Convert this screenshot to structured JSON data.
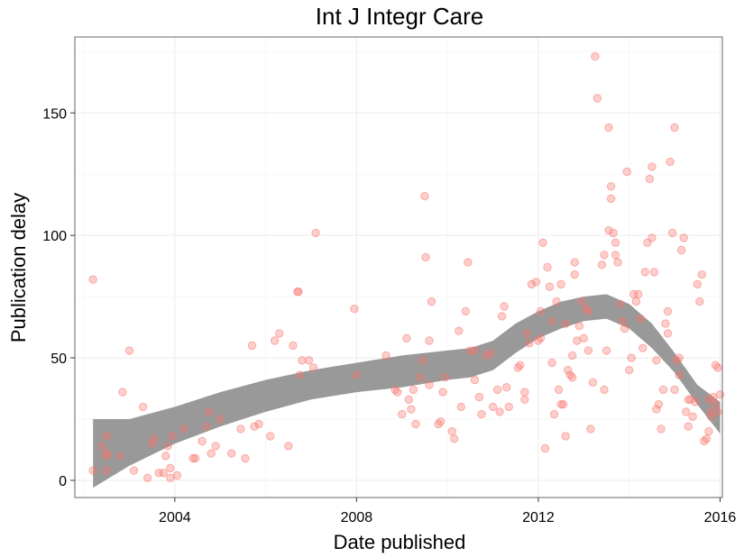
{
  "chart_data": {
    "type": "scatter",
    "title": "Int J Integr Care",
    "xlabel": "Date published",
    "ylabel": "Publication delay",
    "xlim": [
      2001.8,
      2016.05
    ],
    "ylim": [
      -7,
      181
    ],
    "x_ticks": [
      2004,
      2008,
      2012,
      2016
    ],
    "y_ticks": [
      0,
      50,
      100,
      150
    ],
    "grid": true,
    "legend": "none",
    "point_color": "#f8766d",
    "ribbon_color": "#999999",
    "points": [
      [
        2002.2,
        82
      ],
      [
        2002.2,
        4
      ],
      [
        2002.4,
        14
      ],
      [
        2002.5,
        18
      ],
      [
        2002.5,
        11
      ],
      [
        2002.5,
        10
      ],
      [
        2002.5,
        4
      ],
      [
        2002.8,
        10
      ],
      [
        2002.85,
        36
      ],
      [
        2003.0,
        53
      ],
      [
        2003.1,
        4
      ],
      [
        2003.3,
        30
      ],
      [
        2003.4,
        1
      ],
      [
        2003.5,
        15
      ],
      [
        2003.55,
        17
      ],
      [
        2003.65,
        3
      ],
      [
        2003.75,
        3
      ],
      [
        2003.8,
        10
      ],
      [
        2003.85,
        14
      ],
      [
        2003.9,
        5
      ],
      [
        2003.9,
        1
      ],
      [
        2003.95,
        18
      ],
      [
        2004.05,
        2
      ],
      [
        2004.2,
        21
      ],
      [
        2004.4,
        9
      ],
      [
        2004.45,
        9
      ],
      [
        2004.6,
        16
      ],
      [
        2004.7,
        22
      ],
      [
        2004.75,
        28
      ],
      [
        2004.8,
        11
      ],
      [
        2004.9,
        14
      ],
      [
        2005.0,
        25
      ],
      [
        2005.25,
        11
      ],
      [
        2005.45,
        21
      ],
      [
        2005.55,
        9
      ],
      [
        2005.7,
        55
      ],
      [
        2005.75,
        22
      ],
      [
        2005.85,
        23
      ],
      [
        2006.1,
        18
      ],
      [
        2006.2,
        57
      ],
      [
        2006.3,
        60
      ],
      [
        2006.5,
        14
      ],
      [
        2006.6,
        55
      ],
      [
        2006.7,
        77
      ],
      [
        2006.72,
        77
      ],
      [
        2006.75,
        43
      ],
      [
        2006.8,
        49
      ],
      [
        2006.95,
        49
      ],
      [
        2007.05,
        46
      ],
      [
        2007.1,
        101
      ],
      [
        2007.95,
        70
      ],
      [
        2008.0,
        43
      ],
      [
        2008.65,
        51
      ],
      [
        2008.85,
        37
      ],
      [
        2008.9,
        36
      ],
      [
        2009.0,
        27
      ],
      [
        2009.1,
        58
      ],
      [
        2009.15,
        33
      ],
      [
        2009.2,
        29
      ],
      [
        2009.25,
        37
      ],
      [
        2009.3,
        23
      ],
      [
        2009.4,
        42
      ],
      [
        2009.45,
        49
      ],
      [
        2009.5,
        116
      ],
      [
        2009.52,
        91
      ],
      [
        2009.6,
        57
      ],
      [
        2009.65,
        73
      ],
      [
        2009.6,
        39
      ],
      [
        2009.8,
        23
      ],
      [
        2009.85,
        24
      ],
      [
        2009.9,
        36
      ],
      [
        2009.95,
        42
      ],
      [
        2010.1,
        20
      ],
      [
        2010.15,
        17
      ],
      [
        2010.25,
        61
      ],
      [
        2010.3,
        30
      ],
      [
        2010.4,
        69
      ],
      [
        2010.45,
        89
      ],
      [
        2010.5,
        53
      ],
      [
        2010.6,
        53
      ],
      [
        2010.6,
        41
      ],
      [
        2010.7,
        34
      ],
      [
        2010.75,
        27
      ],
      [
        2010.85,
        51
      ],
      [
        2010.95,
        52
      ],
      [
        2011.0,
        30
      ],
      [
        2011.1,
        37
      ],
      [
        2011.15,
        28
      ],
      [
        2011.2,
        67
      ],
      [
        2011.25,
        71
      ],
      [
        2011.3,
        38
      ],
      [
        2011.35,
        30
      ],
      [
        2011.55,
        46
      ],
      [
        2011.6,
        47
      ],
      [
        2011.7,
        36
      ],
      [
        2011.7,
        33
      ],
      [
        2011.75,
        60
      ],
      [
        2011.8,
        56
      ],
      [
        2011.85,
        80
      ],
      [
        2011.95,
        81
      ],
      [
        2012.0,
        57
      ],
      [
        2012.05,
        69
      ],
      [
        2012.05,
        58
      ],
      [
        2012.1,
        97
      ],
      [
        2012.15,
        13
      ],
      [
        2012.2,
        87
      ],
      [
        2012.25,
        79
      ],
      [
        2012.3,
        65
      ],
      [
        2012.3,
        48
      ],
      [
        2012.35,
        27
      ],
      [
        2012.4,
        73
      ],
      [
        2012.45,
        37
      ],
      [
        2012.5,
        80
      ],
      [
        2012.5,
        31
      ],
      [
        2012.55,
        31
      ],
      [
        2012.6,
        18
      ],
      [
        2012.6,
        64
      ],
      [
        2012.65,
        45
      ],
      [
        2012.7,
        43
      ],
      [
        2012.75,
        51
      ],
      [
        2012.75,
        42
      ],
      [
        2012.8,
        84
      ],
      [
        2012.8,
        89
      ],
      [
        2012.85,
        57
      ],
      [
        2012.9,
        63
      ],
      [
        2012.95,
        73
      ],
      [
        2013.0,
        58
      ],
      [
        2013.05,
        70
      ],
      [
        2013.1,
        53
      ],
      [
        2013.1,
        69
      ],
      [
        2013.15,
        21
      ],
      [
        2013.2,
        40
      ],
      [
        2013.25,
        173
      ],
      [
        2013.3,
        156
      ],
      [
        2013.4,
        88
      ],
      [
        2013.45,
        92
      ],
      [
        2013.45,
        37
      ],
      [
        2013.5,
        53
      ],
      [
        2013.55,
        102
      ],
      [
        2013.55,
        144
      ],
      [
        2013.6,
        120
      ],
      [
        2013.6,
        115
      ],
      [
        2013.65,
        101
      ],
      [
        2013.7,
        97
      ],
      [
        2013.7,
        92
      ],
      [
        2013.75,
        89
      ],
      [
        2013.8,
        72
      ],
      [
        2013.85,
        65
      ],
      [
        2013.9,
        62
      ],
      [
        2013.95,
        126
      ],
      [
        2014.0,
        45
      ],
      [
        2014.05,
        50
      ],
      [
        2014.1,
        76
      ],
      [
        2014.15,
        73
      ],
      [
        2014.2,
        76
      ],
      [
        2014.25,
        66
      ],
      [
        2014.3,
        54
      ],
      [
        2014.35,
        85
      ],
      [
        2014.4,
        97
      ],
      [
        2014.45,
        123
      ],
      [
        2014.5,
        99
      ],
      [
        2014.5,
        128
      ],
      [
        2014.55,
        85
      ],
      [
        2014.6,
        49
      ],
      [
        2014.6,
        29
      ],
      [
        2014.65,
        31
      ],
      [
        2014.7,
        21
      ],
      [
        2014.75,
        37
      ],
      [
        2014.8,
        64
      ],
      [
        2014.85,
        69
      ],
      [
        2014.85,
        60
      ],
      [
        2014.9,
        130
      ],
      [
        2014.95,
        101
      ],
      [
        2015.0,
        144
      ],
      [
        2015.0,
        37
      ],
      [
        2015.05,
        49
      ],
      [
        2015.1,
        43
      ],
      [
        2015.1,
        50
      ],
      [
        2015.15,
        94
      ],
      [
        2015.2,
        99
      ],
      [
        2015.25,
        28
      ],
      [
        2015.3,
        22
      ],
      [
        2015.3,
        33
      ],
      [
        2015.35,
        33
      ],
      [
        2015.4,
        26
      ],
      [
        2015.45,
        32
      ],
      [
        2015.5,
        80
      ],
      [
        2015.55,
        73
      ],
      [
        2015.6,
        84
      ],
      [
        2015.65,
        16
      ],
      [
        2015.7,
        17
      ],
      [
        2015.75,
        20
      ],
      [
        2015.8,
        26
      ],
      [
        2015.85,
        34
      ],
      [
        2015.9,
        31
      ],
      [
        2015.95,
        46
      ],
      [
        2016.0,
        35
      ],
      [
        2015.9,
        47
      ],
      [
        2015.95,
        28
      ],
      [
        2015.8,
        28
      ],
      [
        2015.75,
        33
      ]
    ],
    "smooth_band": {
      "x": [
        2002.2,
        2003.0,
        2004.0,
        2005.0,
        2006.0,
        2007.0,
        2008.0,
        2009.0,
        2010.0,
        2010.5,
        2011.0,
        2011.5,
        2012.0,
        2012.5,
        2013.0,
        2013.5,
        2014.0,
        2014.5,
        2015.0,
        2015.5,
        2016.0
      ],
      "lower": [
        -3,
        6,
        15,
        22,
        28,
        33,
        36,
        38,
        41,
        42,
        45,
        52,
        58,
        62,
        65,
        66,
        62,
        54,
        44,
        31,
        19
      ],
      "upper": [
        25,
        25,
        30,
        36,
        41,
        45,
        48,
        51,
        53,
        54,
        57,
        64,
        69,
        73,
        75,
        76,
        72,
        64,
        52,
        39,
        32
      ]
    }
  }
}
